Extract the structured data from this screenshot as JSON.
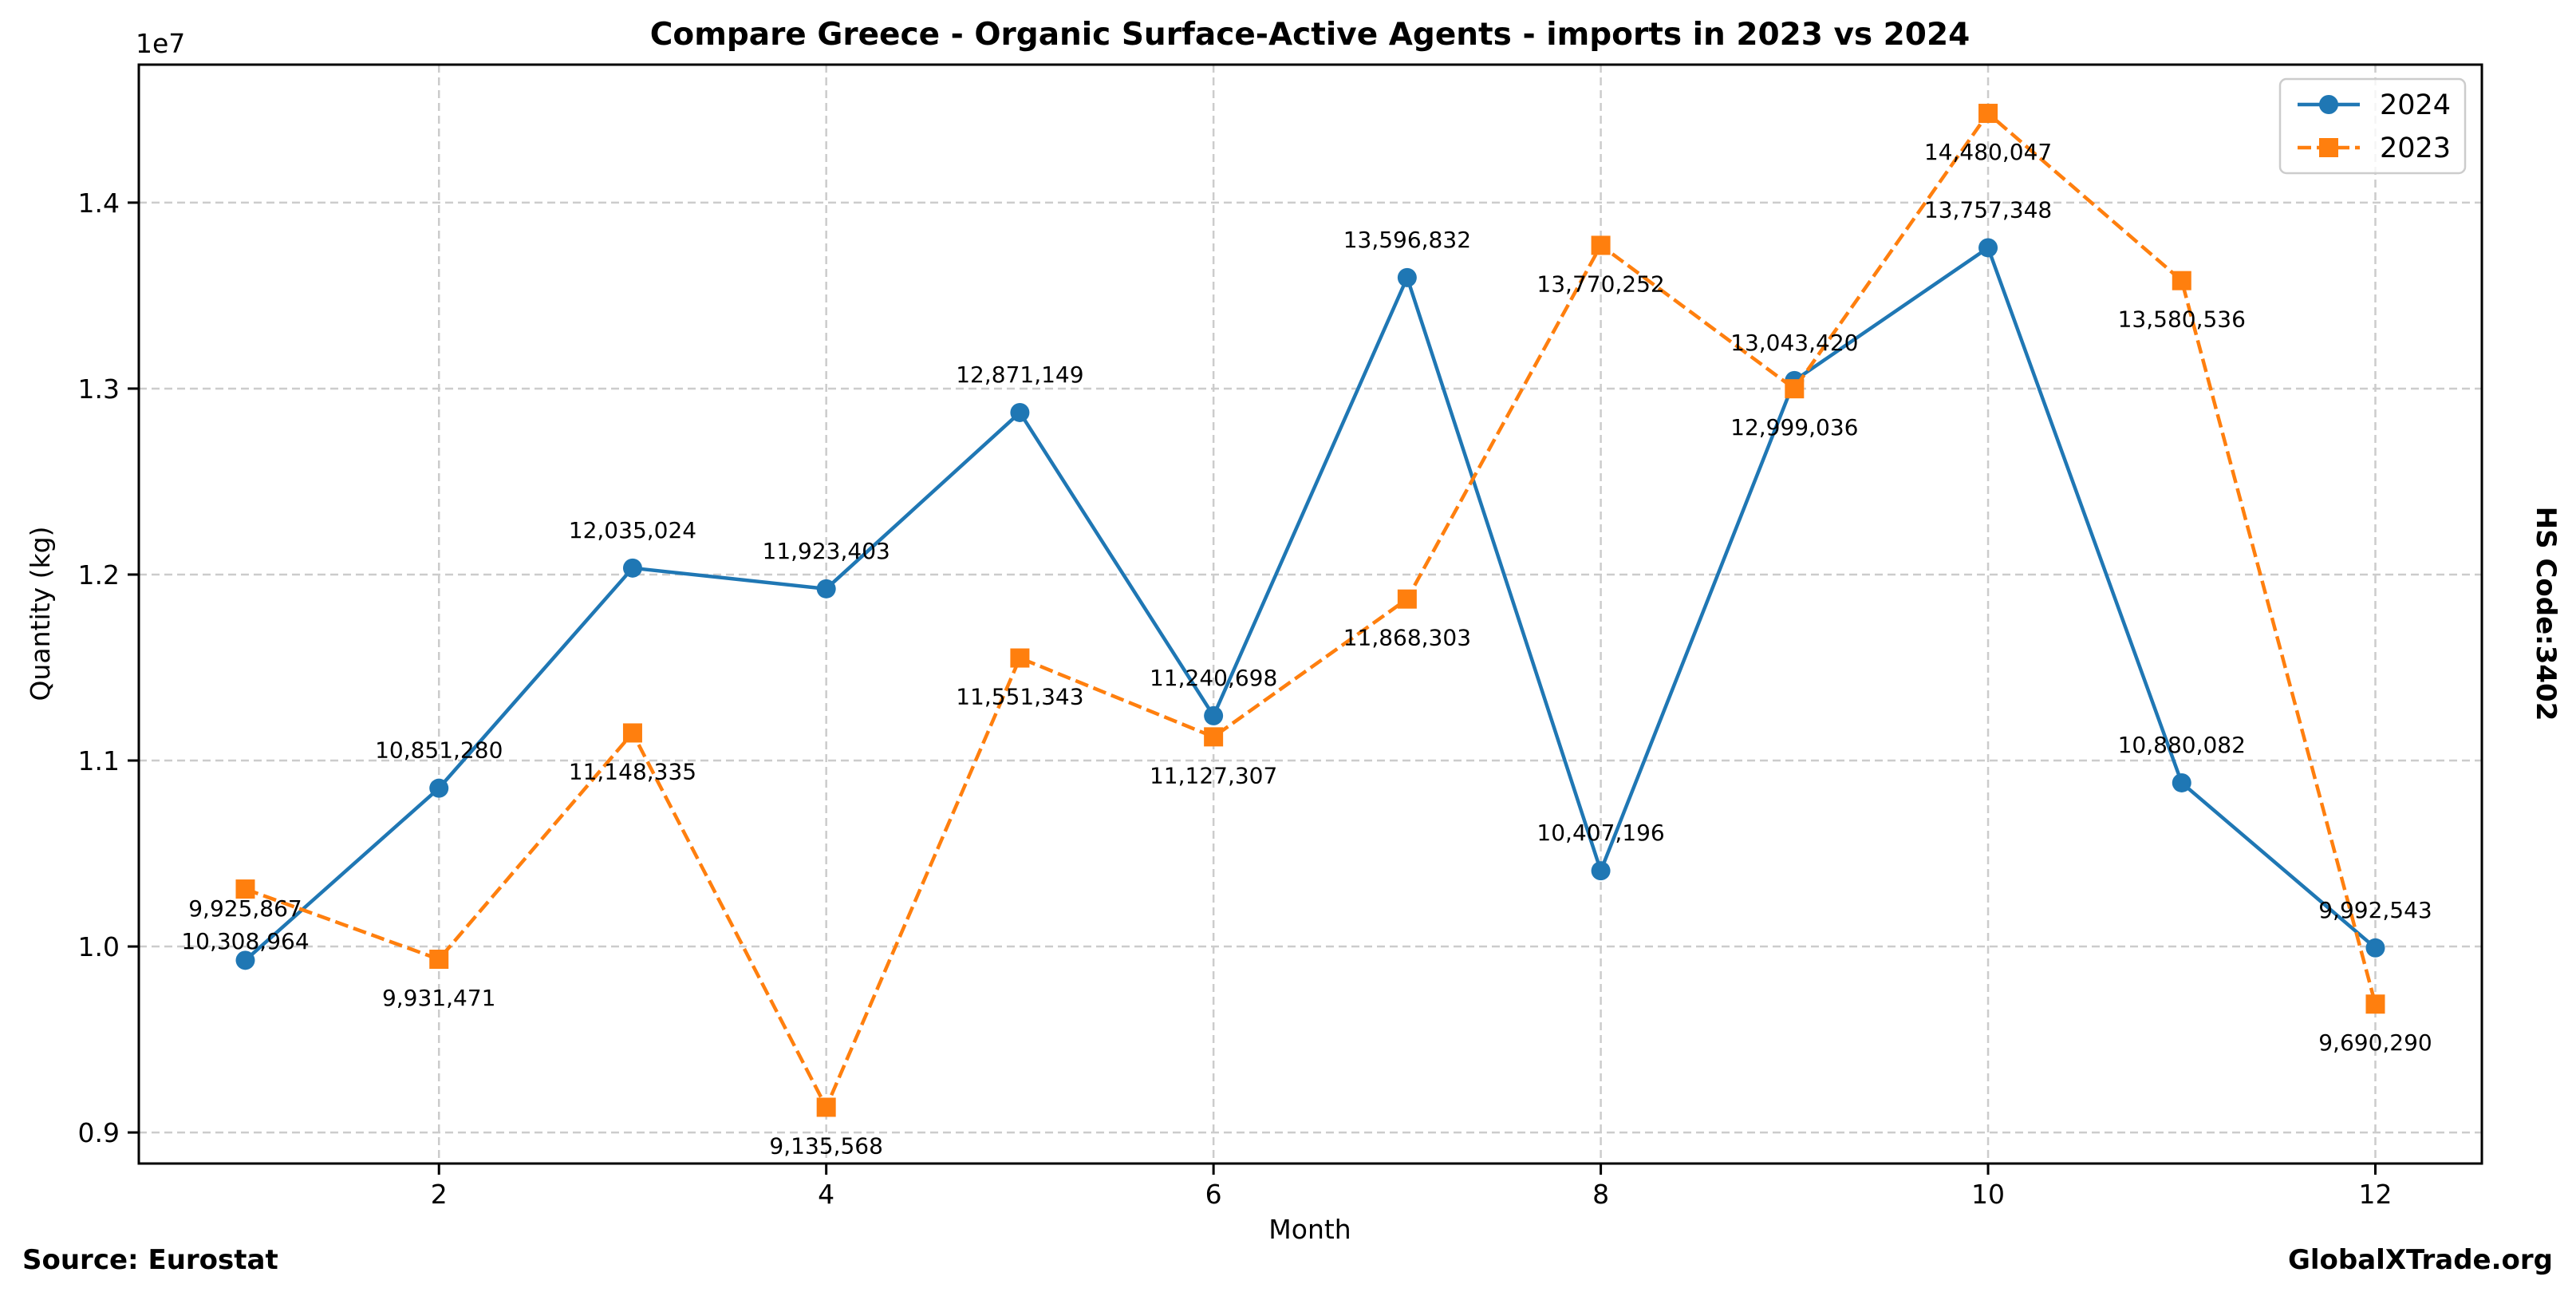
{
  "chart_data": {
    "type": "line",
    "title": "Compare Greece - Organic Surface-Active Agents - imports in 2023 vs 2024",
    "xlabel": "Month",
    "ylabel": "Quantity (kg)",
    "y_offset_label": "1e7",
    "x": [
      1,
      2,
      3,
      4,
      5,
      6,
      7,
      8,
      9,
      10,
      11,
      12
    ],
    "xlim": [
      0.45,
      12.55
    ],
    "ylim": [
      8833000,
      14742000
    ],
    "x_ticks": [
      2,
      4,
      6,
      8,
      10,
      12
    ],
    "x_tick_labels": [
      "2",
      "4",
      "6",
      "8",
      "10",
      "12"
    ],
    "y_ticks": [
      9000000,
      10000000,
      11000000,
      12000000,
      13000000,
      14000000
    ],
    "y_tick_labels": [
      "0.9",
      "1.0",
      "1.1",
      "1.2",
      "1.3",
      "1.4"
    ],
    "grid": true,
    "legend_position": "top-right",
    "series": [
      {
        "name": "2024",
        "color": "#1f77b4",
        "line_style": "solid",
        "marker": "circle",
        "label_position": "above",
        "values": [
          9925867,
          10851280,
          12035024,
          11923403,
          12871149,
          11240698,
          13596832,
          10407196,
          13043420,
          13757348,
          10880082,
          9992543
        ],
        "labels": [
          "9,925,867",
          "10,851,280",
          "12,035,024",
          "11,923,403",
          "12,871,149",
          "11,240,698",
          "13,596,832",
          "10,407,196",
          "13,043,420",
          "13,757,348",
          "10,880,082",
          "9,992,543"
        ]
      },
      {
        "name": "2023",
        "color": "#ff7f0e",
        "line_style": "dashed",
        "marker": "square",
        "label_position": "below",
        "values": [
          10308964,
          9931471,
          11148335,
          9135568,
          11551343,
          11127307,
          11868303,
          13770252,
          12999036,
          14480047,
          13580536,
          9690290
        ],
        "labels": [
          "10,308,964",
          "9,931,471",
          "11,148,335",
          "9,135,568",
          "11,551,343",
          "11,127,307",
          "11,868,303",
          "13,770,252",
          "12,999,036",
          "14,480,047",
          "13,580,536",
          "9,690,290"
        ]
      }
    ],
    "annotations": {
      "side_label": "HS Code:3402",
      "source": "Source: Eurostat",
      "brand": "GlobalXTrade.org"
    }
  }
}
